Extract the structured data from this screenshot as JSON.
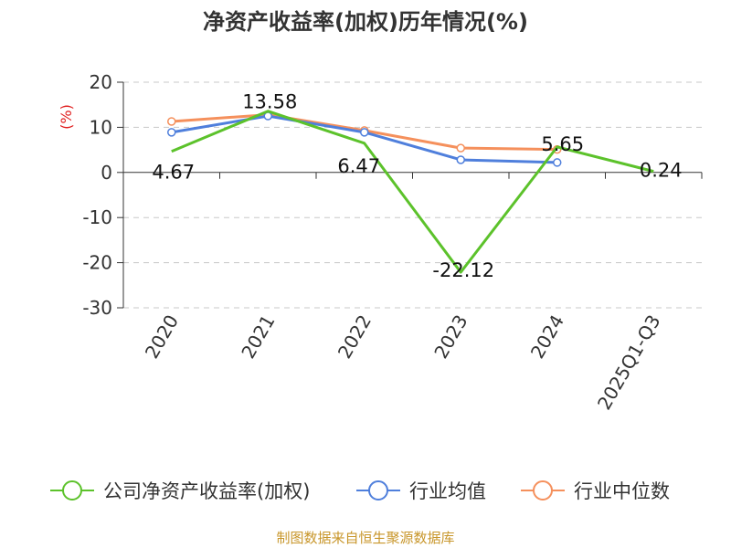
{
  "chart_data": {
    "type": "line",
    "title": "净资产收益率(加权)历年情况(%)",
    "unit": "(%)",
    "categories": [
      "2020",
      "2021",
      "2022",
      "2023",
      "2024",
      "2025Q1-Q3"
    ],
    "ylim": [
      -30,
      20
    ],
    "yticks": [
      20,
      10,
      0,
      -10,
      -20,
      -30
    ],
    "grid": true,
    "legend_position": "bottom",
    "series": [
      {
        "name": "公司净资产收益率(加权)",
        "color": "#5cc22b",
        "values": [
          4.67,
          13.58,
          6.47,
          -22.12,
          5.65,
          0.24
        ],
        "labels": [
          "4.67",
          "13.58",
          "6.47",
          "-22.12",
          "5.65",
          "0.24"
        ]
      },
      {
        "name": "行业均值",
        "color": "#4f7fdc",
        "values": [
          8.9,
          12.5,
          8.9,
          2.8,
          2.2,
          null
        ]
      },
      {
        "name": "行业中位数",
        "color": "#f5905c",
        "values": [
          11.3,
          12.8,
          9.3,
          5.4,
          5.1,
          null
        ]
      }
    ]
  },
  "source": "制图数据来自恒生聚源数据库"
}
